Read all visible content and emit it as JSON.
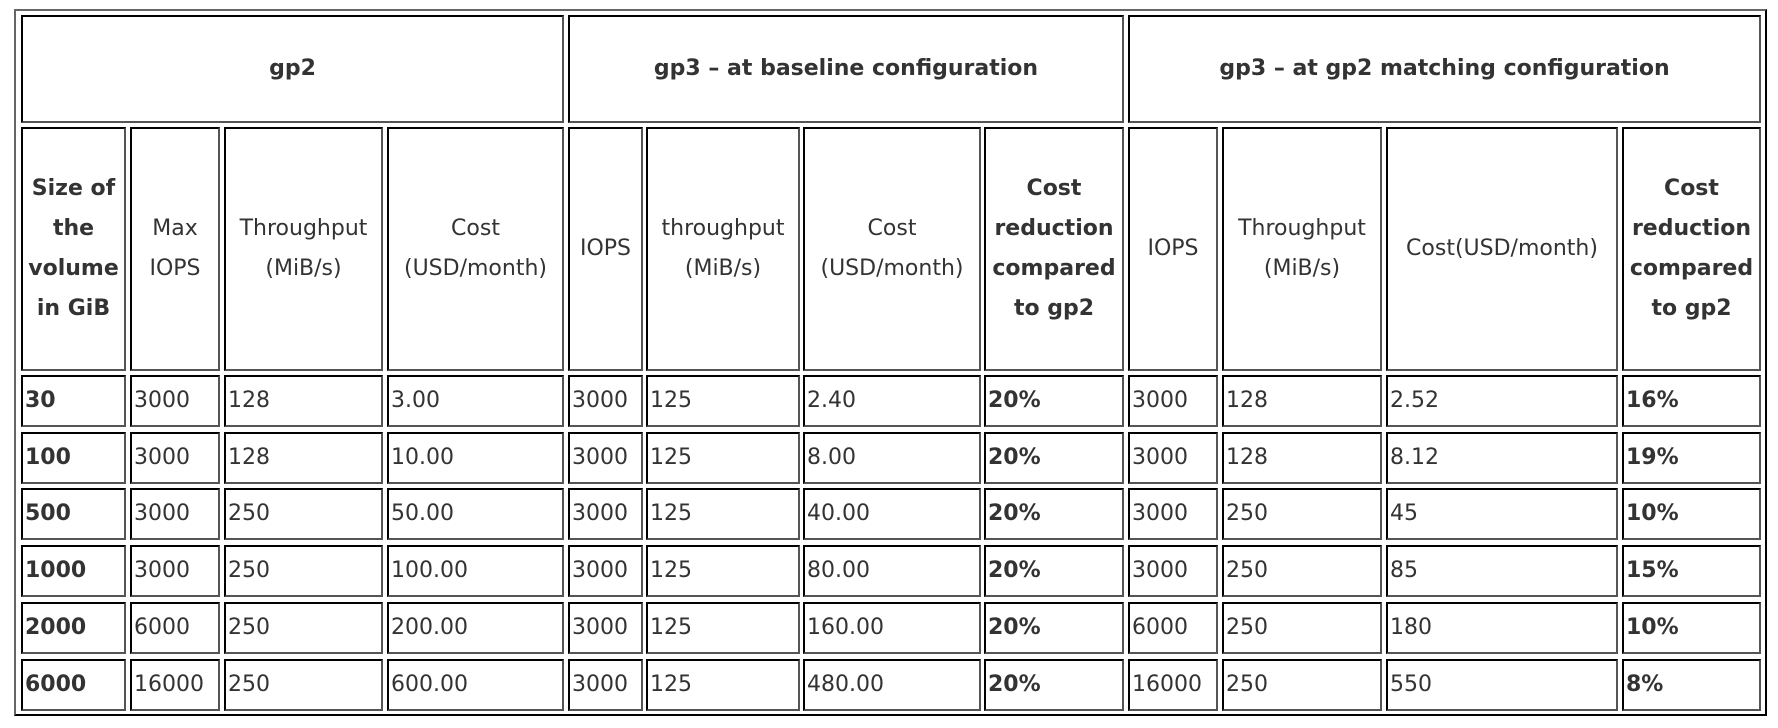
{
  "table": {
    "groups": [
      {
        "label": "gp2"
      },
      {
        "label": "gp3 – at baseline configuration"
      },
      {
        "label": "gp3 – at gp2 matching configuration"
      }
    ],
    "columns": [
      {
        "label": "Size of the volume in GiB",
        "lines": [
          "Size of",
          "the",
          "volume",
          "in GiB"
        ],
        "bold": true
      },
      {
        "label": "Max IOPS",
        "lines": [
          "Max",
          "IOPS"
        ],
        "bold": false
      },
      {
        "label": "Throughput (MiB/s)",
        "lines": [
          "Throughput",
          "(MiB/s)"
        ],
        "bold": false
      },
      {
        "label": "Cost (USD/month)",
        "lines": [
          "Cost",
          "(USD/month)"
        ],
        "bold": false
      },
      {
        "label": "IOPS",
        "lines": [
          "IOPS"
        ],
        "bold": false
      },
      {
        "label": "throughput (MiB/s)",
        "lines": [
          "throughput",
          "(MiB/s)"
        ],
        "bold": false
      },
      {
        "label": "Cost (USD/month)",
        "lines": [
          "Cost",
          "(USD/month)"
        ],
        "bold": false
      },
      {
        "label": "Cost reduction compared to gp2",
        "lines": [
          "Cost",
          "reduction",
          "compared",
          "to gp2"
        ],
        "bold": true
      },
      {
        "label": "IOPS",
        "lines": [
          "IOPS"
        ],
        "bold": false
      },
      {
        "label": "Throughput (MiB/s)",
        "lines": [
          "Throughput",
          "(MiB/s)"
        ],
        "bold": false
      },
      {
        "label": "Cost(USD/month)",
        "lines": [
          "Cost(USD/month)"
        ],
        "bold": false
      },
      {
        "label": "Cost reduction compared to gp2",
        "lines": [
          "Cost",
          "reduction",
          "compared",
          "to gp2"
        ],
        "bold": true
      }
    ],
    "rows": [
      [
        "30",
        "3000",
        "128",
        "3.00",
        "3000",
        "125",
        "2.40",
        "20%",
        "3000",
        "128",
        "2.52",
        "16%"
      ],
      [
        "100",
        "3000",
        "128",
        "10.00",
        "3000",
        "125",
        "8.00",
        "20%",
        "3000",
        "128",
        "8.12",
        "19%"
      ],
      [
        "500",
        "3000",
        "250",
        "50.00",
        "3000",
        "125",
        "40.00",
        "20%",
        "3000",
        "250",
        "45",
        "10%"
      ],
      [
        "1000",
        "3000",
        "250",
        "100.00",
        "3000",
        "125",
        "80.00",
        "20%",
        "3000",
        "250",
        "85",
        "15%"
      ],
      [
        "2000",
        "6000",
        "250",
        "200.00",
        "3000",
        "125",
        "160.00",
        "20%",
        "6000",
        "250",
        "180",
        "10%"
      ],
      [
        "6000",
        "16000",
        "250",
        "600.00",
        "3000",
        "125",
        "480.00",
        "20%",
        "16000",
        "250",
        "550",
        "8%"
      ]
    ]
  }
}
